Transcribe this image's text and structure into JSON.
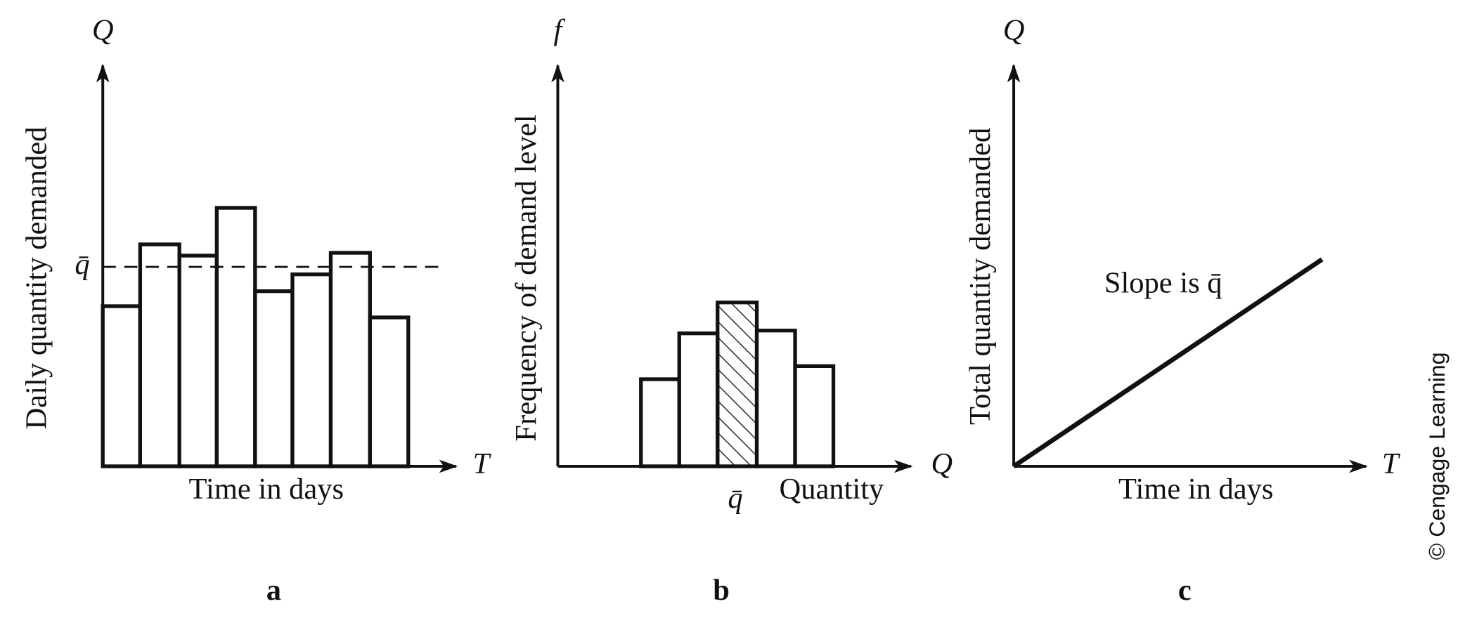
{
  "panels": [
    {
      "letter": "a",
      "y_symbol": "Q",
      "y_label": "Daily quantity demanded",
      "mean_label": "q̄",
      "x_symbol": "T",
      "x_label": "Time in days"
    },
    {
      "letter": "b",
      "y_symbol": "f",
      "y_label": "Frequency of demand level",
      "mean_label": "q̄",
      "x_symbol": "Q",
      "x_label": "Quantity"
    },
    {
      "letter": "c",
      "y_symbol": "Q",
      "y_label": "Total quantity demanded",
      "annotation": "Slope is q̄",
      "x_symbol": "T",
      "x_label": "Time in days"
    }
  ],
  "credit": "© Cengage Learning"
}
